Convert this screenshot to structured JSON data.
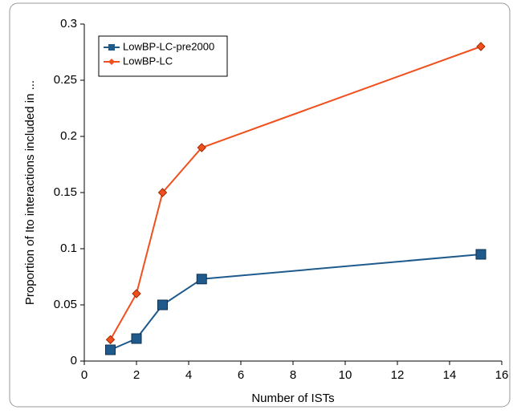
{
  "chart_data": {
    "type": "line",
    "x_label": "Number of ISTs",
    "y_label": "Proportion of Ito interactions included in ...",
    "x": [
      1,
      2,
      3,
      4.5,
      15.2
    ],
    "series": [
      {
        "name": "LowBP-LC-pre2000",
        "color": "#1f5a8c",
        "marker": "square",
        "values": [
          0.01,
          0.02,
          0.05,
          0.073,
          0.095
        ]
      },
      {
        "name": "LowBP-LC",
        "color": "#f0501e",
        "marker": "diamond",
        "values": [
          0.019,
          0.06,
          0.15,
          0.19,
          0.28
        ]
      }
    ],
    "xlim": [
      0,
      16
    ],
    "xticks": [
      0,
      2,
      4,
      6,
      8,
      10,
      12,
      14,
      16
    ],
    "ylim": [
      0,
      0.3
    ],
    "yticks": [
      0,
      0.05,
      0.1,
      0.15,
      0.2,
      0.25,
      0.3
    ],
    "grid": false,
    "legend": "top-left"
  }
}
